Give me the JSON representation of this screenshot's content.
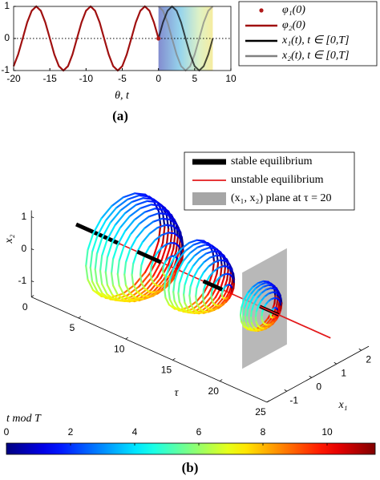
{
  "chart_data": [
    {
      "type": "line",
      "label": "(a)",
      "xlabel": "θ, t",
      "xlim": [
        -20,
        10
      ],
      "xticks": [
        -20,
        -15,
        -10,
        -5,
        0,
        5,
        10
      ],
      "ylim": [
        -1,
        1
      ],
      "yticks": [
        -1,
        0,
        1
      ],
      "series": [
        {
          "name": "φ₁(0)",
          "color": "#b01a1a",
          "marker": "dot",
          "x": [
            0
          ],
          "values": [
            0
          ]
        },
        {
          "name": "φ₂(0)",
          "color": "#a01010",
          "x": [
            -20,
            -19.375,
            -18.75,
            -18.125,
            -17.5,
            -16.875,
            -16.25,
            -15.625,
            -15,
            -14.375,
            -13.75,
            -13.125,
            -12.5,
            -11.875,
            -11.25,
            -10.625,
            -10,
            -9.375,
            -8.75,
            -8.125,
            -7.5,
            -6.875,
            -6.25,
            -5.625,
            -5,
            -4.375,
            -3.75,
            -3.125,
            -2.5,
            -1.875,
            -1.25,
            -0.625,
            0
          ],
          "values": [
            -0.866,
            -0.5,
            0,
            0.5,
            0.866,
            1,
            0.866,
            0.5,
            0,
            -0.5,
            -0.866,
            -1,
            -0.866,
            -0.5,
            0,
            0.5,
            0.866,
            1,
            0.866,
            0.5,
            0,
            -0.5,
            -0.866,
            -1,
            -0.866,
            -0.5,
            0,
            0.5,
            0.866,
            1,
            0.866,
            0.5,
            0
          ]
        },
        {
          "name": "x₁(t), t ∈ [0,T]",
          "color": "#000000",
          "x": [
            0,
            0.625,
            1.25,
            1.875,
            2.5,
            3.125,
            3.75,
            4.375,
            5,
            5.625,
            6.25,
            6.875,
            7.5
          ],
          "values": [
            0,
            0.5,
            0.866,
            1,
            0.866,
            0.5,
            0,
            -0.5,
            -0.866,
            -1,
            -0.866,
            -0.5,
            0
          ]
        },
        {
          "name": "x₂(t), t ∈ [0,T]",
          "color": "#808080",
          "x": [
            0,
            0.625,
            1.25,
            1.875,
            2.5,
            3.125,
            3.75,
            4.375,
            5,
            5.625,
            6.25,
            6.875,
            7.5
          ],
          "values": [
            1,
            0.866,
            0.5,
            0,
            -0.5,
            -0.866,
            -1,
            -0.866,
            -0.5,
            0,
            0.5,
            0.866,
            1
          ]
        }
      ]
    },
    {
      "type": "surface3d",
      "label": "(b)",
      "xlabel": "τ",
      "ylabel": "x₁",
      "zlabel": "x₂",
      "xlim": [
        0,
        25
      ],
      "xticks": [
        0,
        5,
        10,
        15,
        20,
        25
      ],
      "ylim": [
        -1.8,
        2.3
      ],
      "yticks": [
        -1,
        0,
        1,
        2
      ],
      "zlim": [
        -1.5,
        1.2
      ],
      "zticks": [
        -1,
        0,
        1
      ],
      "plane_at": 20,
      "legend": [
        {
          "name": "stable equilibrium",
          "color": "#000000"
        },
        {
          "name": "unstable equilibrium",
          "color": "#e31a1c"
        },
        {
          "name": "(x₁, x₂) plane at τ = 20",
          "color": "#a6a6a6"
        }
      ],
      "colorbar": {
        "label": "t mod T",
        "clim": [
          0,
          11.5
        ],
        "ticks": [
          0,
          2,
          4,
          6,
          8,
          10
        ]
      }
    }
  ]
}
